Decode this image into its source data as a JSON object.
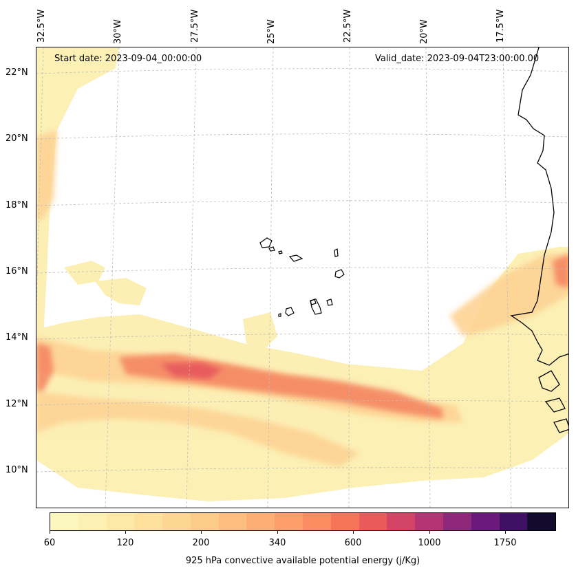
{
  "map": {
    "start_date": "Start date: 2023-09-04_00:00:00",
    "valid_date": "Valid_date: 2023-09-04T23:00:00.00",
    "longitude_labels": [
      "32.5°W",
      "30°W",
      "27.5°W",
      "25°W",
      "22.5°W",
      "20°W",
      "17.5°W"
    ],
    "latitude_labels": [
      "22°N",
      "20°N",
      "18°N",
      "16°N",
      "14°N",
      "12°N",
      "10°N"
    ],
    "features": [
      "Cape Verde islands",
      "West African coastline",
      "CAPE bands"
    ]
  },
  "colorbar": {
    "tick_labels": [
      "60",
      "120",
      "200",
      "340",
      "600",
      "1000",
      "1750"
    ],
    "title": "925 hPa convective available potential energy (j/Kg)",
    "colors": [
      "#fcf7bd",
      "#fcf0b2",
      "#fde9a7",
      "#fde09b",
      "#fdd693",
      "#fdcb88",
      "#fdbd7e",
      "#fdae73",
      "#fc9d6a",
      "#fb8b61",
      "#f5745a",
      "#e95b5b",
      "#d44467",
      "#b53574",
      "#8f287b",
      "#691a7b",
      "#3f1064",
      "#130b2e"
    ]
  }
}
